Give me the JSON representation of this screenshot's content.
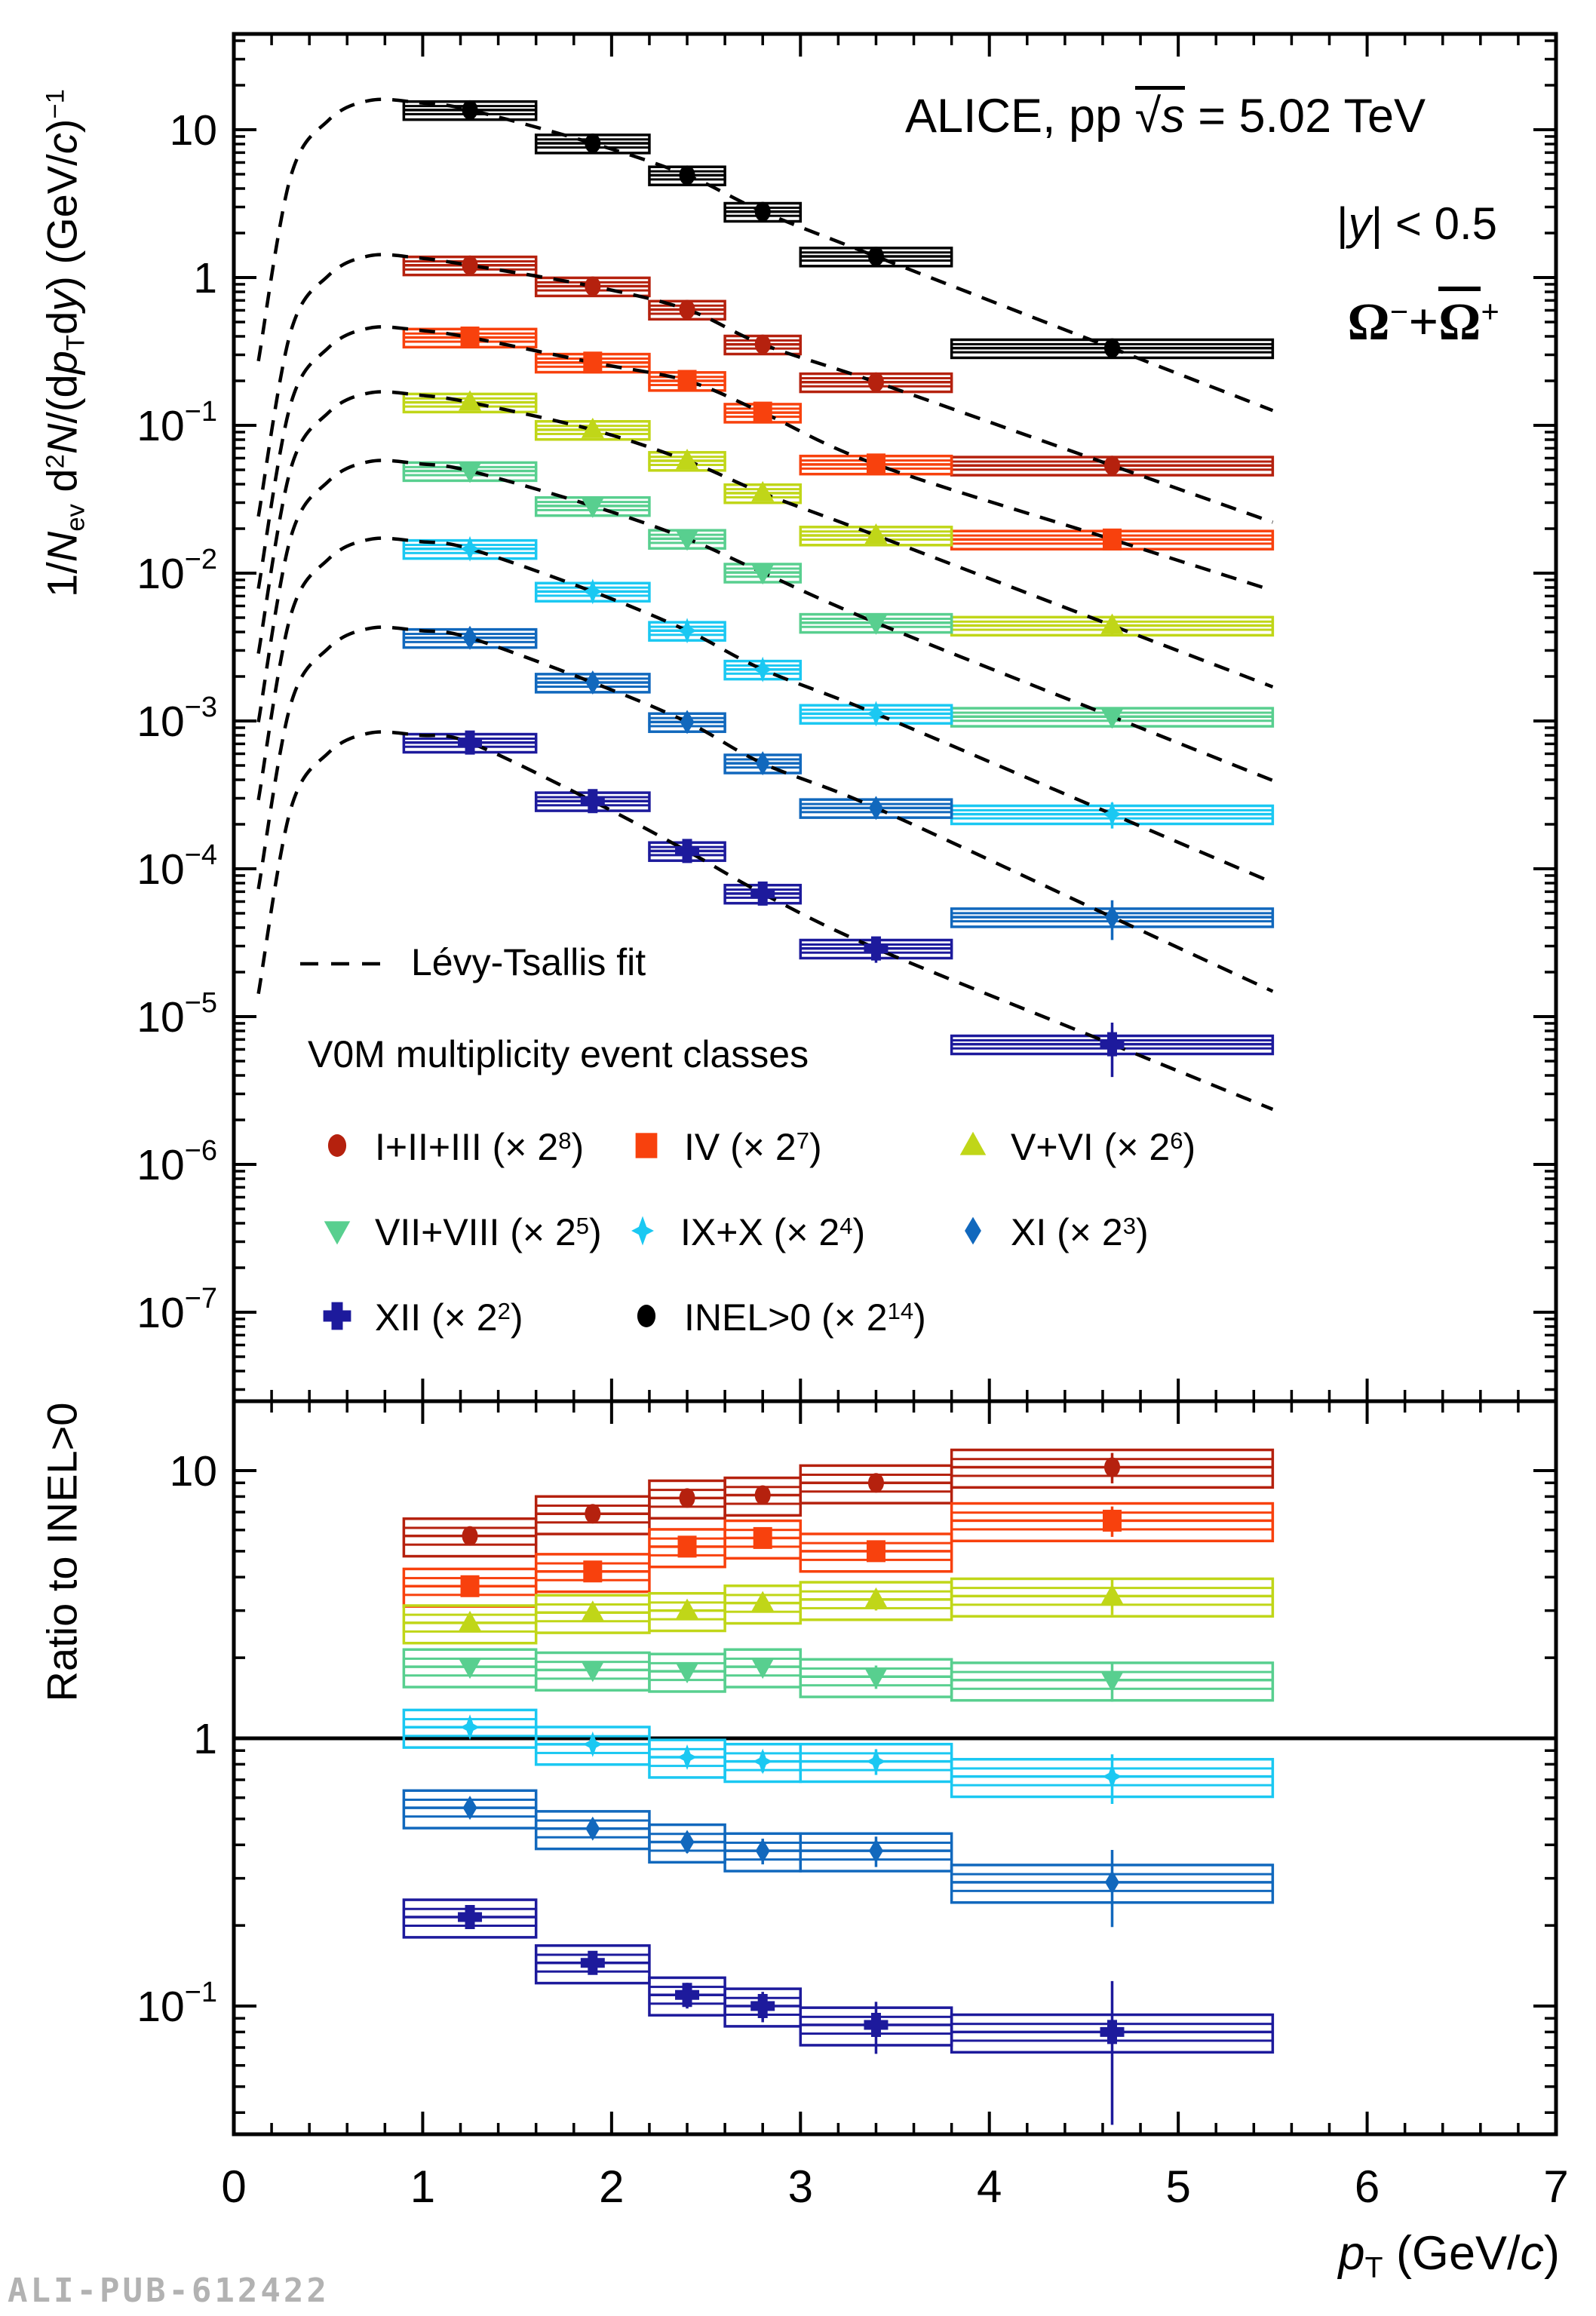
{
  "page": {
    "watermark": "ALI-PUB-612422"
  },
  "header": {
    "title_pre": "ALICE, pp ",
    "title_sqrt": "√",
    "title_s": "s",
    "title_post": " = 5.02 TeV",
    "rap_p1": "|",
    "rap_y": "y",
    "rap_p2": "| < 0.5",
    "om_1": "Ω",
    "om_1sup": "−",
    "om_plus": "+",
    "om_2": "Ω",
    "om_2sup": "+"
  },
  "axes": {
    "x_title_p": "p",
    "x_title_sub": "T",
    "x_title_rest": " (GeV/",
    "x_title_c": "c",
    "x_title_close": ")",
    "top_y": {
      "p1": "1/",
      "p2": "N",
      "p3": "ev",
      "p4": " d",
      "p5": "2",
      "p6": "N",
      "p7": "/(d",
      "p8": "p",
      "p9": "T",
      "p10": "d",
      "p11": "y",
      "p12": ") (GeV/",
      "p13": "c",
      "p14": ")",
      "p15": "−1"
    },
    "bottom_y_title": "Ratio to INEL>0"
  },
  "legend": {
    "fit_label": "Lévy-Tsallis fit",
    "classes_title": "V0M multiplicity event classes",
    "entries": [
      {
        "key": "I_II_III",
        "pre": "I+II+III (× 2",
        "sup": "8",
        "post": ")"
      },
      {
        "key": "IV",
        "pre": "IV (× 2",
        "sup": "7",
        "post": ")"
      },
      {
        "key": "V_VI",
        "pre": "V+VI (× 2",
        "sup": "6",
        "post": ")"
      },
      {
        "key": "VII_VIII",
        "pre": "VII+VIII (× 2",
        "sup": "5",
        "post": ")"
      },
      {
        "key": "IX_X",
        "pre": "IX+X (× 2",
        "sup": "4",
        "post": ")"
      },
      {
        "key": "XI",
        "pre": "XI (× 2",
        "sup": "3",
        "post": ")"
      },
      {
        "key": "XII",
        "pre": "XII (× 2",
        "sup": "2",
        "post": ")"
      },
      {
        "key": "INEL0",
        "pre": "INEL>0 (× 2",
        "sup": "14",
        "post": ")"
      }
    ]
  },
  "chart_data": {
    "type": "scatter",
    "title": "ALICE, pp √s = 5.02 TeV, |y| < 0.5, Ω⁻+Ω̄⁺",
    "xlabel": "pT (GeV/c)",
    "x_axis": {
      "range": [
        0,
        7
      ],
      "major_ticks": [
        0,
        1,
        2,
        3,
        4,
        5,
        6,
        7
      ],
      "tick_labels": [
        "0",
        "1",
        "2",
        "3",
        "4",
        "5",
        "6",
        "7"
      ],
      "minor_step": 0.2
    },
    "bins": {
      "edges": [
        0.9,
        1.6,
        2.2,
        2.6,
        3.0,
        3.8,
        5.5
      ],
      "centers": [
        1.25,
        1.9,
        2.4,
        2.8,
        3.4,
        4.65
      ]
    },
    "top_panel": {
      "ylabel": "1/Nev d2N/(dpT dy) (GeV/c)-1",
      "grid": false,
      "tick_labels": [
        {
          "v": 10,
          "base": "10",
          "exp": ""
        },
        {
          "v": 1,
          "base": "1",
          "exp": ""
        },
        {
          "v": 0.1,
          "base": "10",
          "exp": "−1"
        },
        {
          "v": 0.01,
          "base": "10",
          "exp": "−2"
        },
        {
          "v": 0.001,
          "base": "10",
          "exp": "−3"
        },
        {
          "v": 0.0001,
          "base": "10",
          "exp": "−4"
        },
        {
          "v": 1e-05,
          "base": "10",
          "exp": "−5"
        },
        {
          "v": 1e-06,
          "base": "10",
          "exp": "−6"
        },
        {
          "v": 1e-07,
          "base": "10",
          "exp": "−7"
        }
      ],
      "syst_frac": 0.14,
      "fit": {
        "label": "Lévy-Tsallis fit",
        "style": "dashed",
        "head_shape": [
          [
            0.13,
            0.02
          ],
          [
            0.3,
            0.35
          ],
          [
            0.5,
            0.85
          ],
          [
            0.72,
            1.16
          ],
          [
            0.98,
            1.12
          ]
        ],
        "tail_x": 5.5,
        "tail_ext": 0.85
      },
      "series": [
        {
          "key": "INEL0",
          "name": "INEL>0 (× 2^14)",
          "marker": "circle",
          "color": "#000000",
          "values": [
            13.6,
            8.09,
            4.92,
            2.79,
            1.39,
            0.333
          ],
          "stat_frac": [
            0.03,
            0.03,
            0.04,
            0.05,
            0.06,
            0.1
          ]
        },
        {
          "key": "I_II_III",
          "name": "I+II+III (× 2^8)",
          "marker": "circle",
          "color": "#b5210e",
          "values": [
            1.21,
            0.873,
            0.607,
            0.353,
            0.196,
            0.0535
          ],
          "stat_frac": [
            0.04,
            0.04,
            0.05,
            0.05,
            0.07,
            0.12
          ]
        },
        {
          "key": "IV",
          "name": "IV (× 2^7)",
          "marker": "square",
          "color": "#f8410d",
          "values": [
            0.393,
            0.266,
            0.2,
            0.122,
            0.0544,
            0.0169
          ],
          "stat_frac": [
            0.04,
            0.04,
            0.05,
            0.06,
            0.07,
            0.12
          ]
        },
        {
          "key": "V_VI",
          "name": "V+VI (× 2^6)",
          "marker": "triangle-up",
          "color": "#c0d618",
          "values": [
            0.143,
            0.0933,
            0.0576,
            0.0348,
            0.018,
            0.00442
          ],
          "stat_frac": [
            0.04,
            0.04,
            0.05,
            0.06,
            0.08,
            0.14
          ]
        },
        {
          "key": "VII_VIII",
          "name": "VII+VIII (× 2^5)",
          "marker": "triangle-down",
          "color": "#58cf8f",
          "values": [
            0.0491,
            0.0285,
            0.0171,
            0.0101,
            0.00462,
            0.00107
          ],
          "stat_frac": [
            0.04,
            0.05,
            0.06,
            0.07,
            0.09,
            0.16
          ]
        },
        {
          "key": "IX_X",
          "name": "IX+X (× 2^4)",
          "marker": "star",
          "color": "#1ac8f2",
          "values": [
            0.0146,
            0.00751,
            0.00408,
            0.00223,
            0.00112,
            0.000234
          ],
          "stat_frac": [
            0.05,
            0.05,
            0.06,
            0.08,
            0.1,
            0.2
          ]
        },
        {
          "key": "XI",
          "name": "XI (× 2^3)",
          "marker": "diamond",
          "color": "#1168bd",
          "values": [
            0.00365,
            0.00182,
            0.000984,
            0.000517,
            0.000258,
            4.71e-05
          ],
          "stat_frac": [
            0.05,
            0.06,
            0.08,
            0.1,
            0.12,
            0.3
          ]
        },
        {
          "key": "XII",
          "name": "XII (× 2^2)",
          "marker": "cross",
          "color": "#1d1a9c",
          "values": [
            0.000714,
            0.000287,
            0.000132,
            6.8e-05,
            2.89e-05,
            6.5e-06
          ],
          "stat_frac": [
            0.07,
            0.08,
            0.1,
            0.12,
            0.2,
            0.4
          ]
        }
      ]
    },
    "bottom_panel": {
      "ylabel": "Ratio to INEL>0",
      "baseline": 1,
      "grid": false,
      "tick_labels": [
        {
          "v": 10,
          "base": "10",
          "exp": ""
        },
        {
          "v": 1,
          "base": "1",
          "exp": ""
        },
        {
          "v": 0.1,
          "base": "10",
          "exp": "−1"
        }
      ],
      "syst_frac": 0.16,
      "series": [
        {
          "key": "I_II_III",
          "marker": "circle",
          "color": "#b5210e",
          "values": [
            5.7,
            6.9,
            7.9,
            8.1,
            9.0,
            10.3
          ],
          "stat_frac": [
            0.05,
            0.05,
            0.06,
            0.06,
            0.08,
            0.13
          ]
        },
        {
          "key": "IV",
          "marker": "square",
          "color": "#f8410d",
          "values": [
            3.7,
            4.2,
            5.2,
            5.6,
            5.0,
            6.5
          ],
          "stat_frac": [
            0.05,
            0.05,
            0.06,
            0.07,
            0.08,
            0.13
          ]
        },
        {
          "key": "V_VI",
          "marker": "triangle-up",
          "color": "#c0d618",
          "values": [
            2.7,
            2.95,
            3.0,
            3.2,
            3.3,
            3.4
          ],
          "stat_frac": [
            0.05,
            0.05,
            0.06,
            0.07,
            0.09,
            0.15
          ]
        },
        {
          "key": "VII_VIII",
          "marker": "triangle-down",
          "color": "#58cf8f",
          "values": [
            1.85,
            1.8,
            1.78,
            1.85,
            1.7,
            1.65
          ],
          "stat_frac": [
            0.05,
            0.06,
            0.07,
            0.08,
            0.1,
            0.17
          ]
        },
        {
          "key": "IX_X",
          "marker": "star",
          "color": "#1ac8f2",
          "values": [
            1.1,
            0.95,
            0.85,
            0.82,
            0.82,
            0.72
          ],
          "stat_frac": [
            0.06,
            0.06,
            0.07,
            0.09,
            0.11,
            0.21
          ]
        },
        {
          "key": "XI",
          "marker": "diamond",
          "color": "#1168bd",
          "values": [
            0.55,
            0.46,
            0.41,
            0.38,
            0.38,
            0.29
          ],
          "stat_frac": [
            0.06,
            0.07,
            0.09,
            0.11,
            0.13,
            0.32
          ]
        },
        {
          "key": "XII",
          "marker": "cross",
          "color": "#1d1a9c",
          "values": [
            0.215,
            0.145,
            0.11,
            0.1,
            0.085,
            0.08
          ],
          "stat_frac": [
            0.08,
            0.09,
            0.11,
            0.13,
            0.22,
            0.55
          ]
        }
      ]
    }
  }
}
